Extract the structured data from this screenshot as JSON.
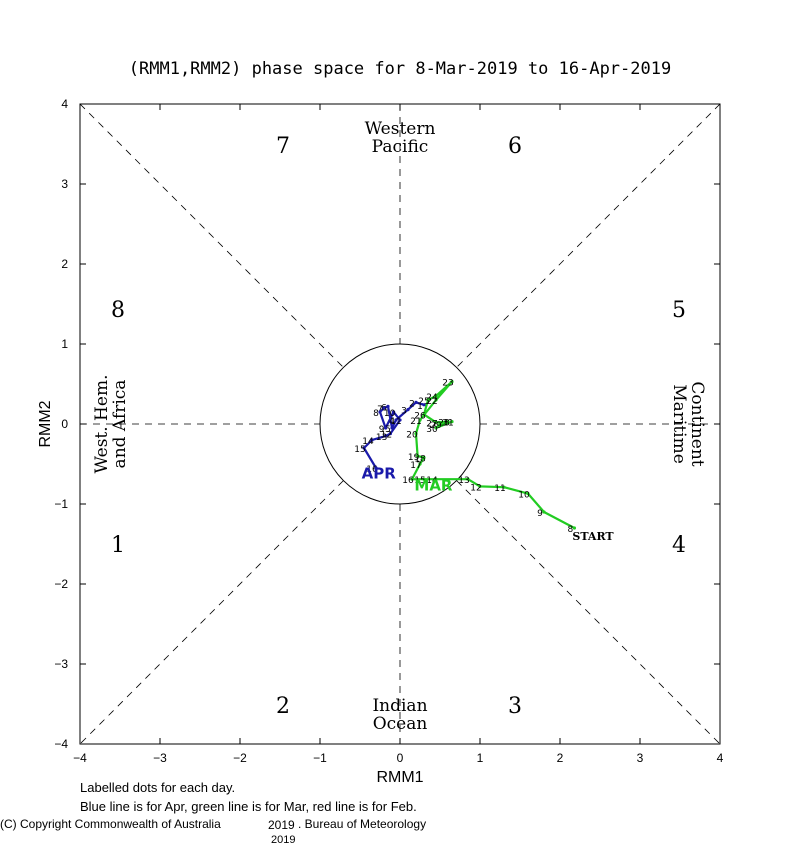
{
  "chart_data": {
    "type": "line",
    "title": "(RMM1,RMM2) phase space for  8-Mar-2019 to 16-Apr-2019",
    "xlabel": "RMM1",
    "ylabel": "RMM2",
    "xlim": [
      -4,
      4
    ],
    "ylim": [
      -4,
      4
    ],
    "x_ticks": [
      "-4",
      "-3",
      "-2",
      "-1",
      "0",
      "1",
      "2",
      "3",
      "4"
    ],
    "y_ticks": [
      "-4",
      "-3",
      "-2",
      "-1",
      "0",
      "1",
      "2",
      "3",
      "4"
    ],
    "phases": [
      "1",
      "2",
      "3",
      "4",
      "5",
      "6",
      "7",
      "8"
    ],
    "regions": {
      "top": [
        "Western",
        "Pacific"
      ],
      "bottom": [
        "Indian",
        "Ocean"
      ],
      "left": [
        "West. Hem.",
        "and Africa"
      ],
      "right": [
        "Maritime",
        "Continent"
      ]
    },
    "unit_circle_radius": 1,
    "grid": false,
    "series": [
      {
        "name": "MAR",
        "color": "#22cc22",
        "labels": [
          "8",
          "9",
          "10",
          "11",
          "12",
          "13",
          "14",
          "15",
          "16",
          "17",
          "18",
          "19",
          "20",
          "21",
          "22",
          "23",
          "24",
          "25",
          "26",
          "27",
          "28",
          "29",
          "30",
          "31"
        ],
        "x": [
          2.18,
          1.8,
          1.6,
          1.3,
          1.0,
          0.85,
          0.45,
          0.3,
          0.15,
          0.25,
          0.3,
          0.22,
          0.2,
          0.25,
          0.45,
          0.65,
          0.45,
          0.35,
          0.3,
          0.45,
          0.6,
          0.5,
          0.45,
          0.65
        ],
        "y": [
          -1.3,
          -1.1,
          -0.87,
          -0.79,
          -0.78,
          -0.69,
          -0.69,
          -0.69,
          -0.69,
          -0.5,
          -0.42,
          -0.4,
          -0.12,
          0.05,
          0.3,
          0.53,
          0.35,
          0.3,
          0.12,
          0.02,
          0.03,
          0.0,
          -0.05,
          0.03
        ]
      },
      {
        "name": "APR",
        "color": "#1a1aaa",
        "labels": [
          "1",
          "2",
          "3",
          "4",
          "5",
          "6",
          "7",
          "8",
          "9",
          "10",
          "11",
          "12",
          "13",
          "14",
          "15",
          "16"
        ],
        "x": [
          0.3,
          0.2,
          0.1,
          -0.05,
          -0.1,
          -0.15,
          -0.2,
          -0.25,
          -0.18,
          -0.08,
          0.0,
          -0.12,
          -0.18,
          -0.35,
          -0.45,
          -0.3
        ],
        "y": [
          0.24,
          0.27,
          0.18,
          0.05,
          -0.05,
          0.22,
          0.2,
          0.15,
          -0.05,
          0.15,
          0.05,
          -0.12,
          -0.15,
          -0.2,
          -0.3,
          -0.55
        ]
      }
    ],
    "start_label": "START",
    "notes": [
      "Labelled dots for each day.",
      "Blue line is for Apr, green line is for Mar, red line is for Feb."
    ],
    "copyright": "(C) Copyright Commonwealth of Australia",
    "copyright_year": "2019",
    "copyright_agency": ". Bureau of Meteorology",
    "copyright_year_below": "2019"
  }
}
